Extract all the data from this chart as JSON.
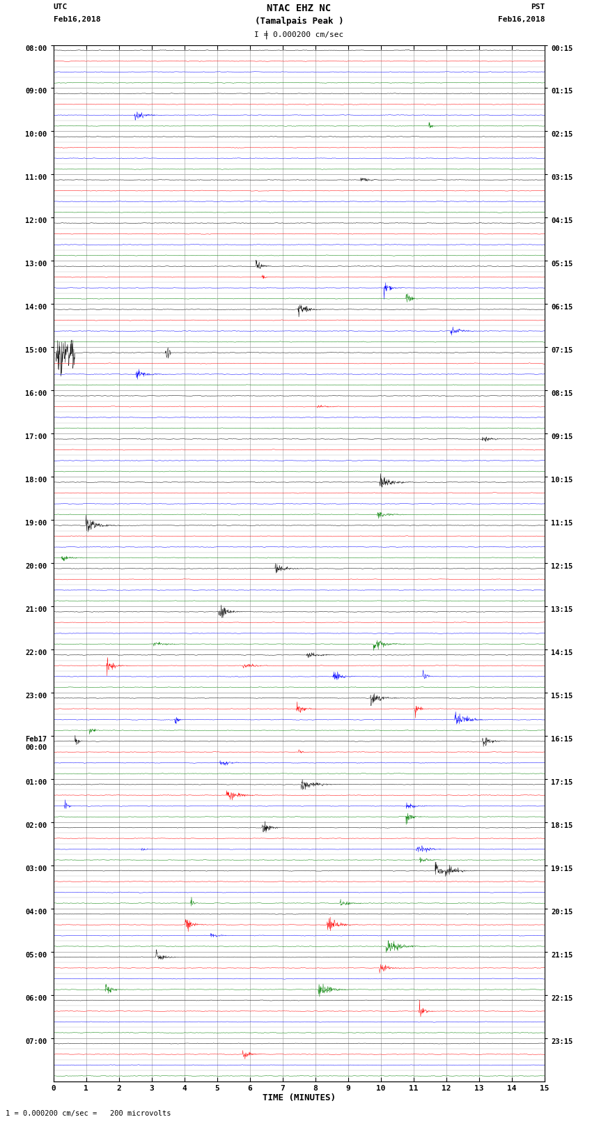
{
  "title_line1": "NTAC EHZ NC",
  "title_line2": "(Tamalpais Peak )",
  "scale_label": "I = 0.000200 cm/sec",
  "left_label": "UTC",
  "left_date": "Feb16,2018",
  "right_label": "PST",
  "right_date": "Feb16,2018",
  "xlabel": "TIME (MINUTES)",
  "footer": "1 = 0.000200 cm/sec =   200 microvolts",
  "utc_times": [
    "08:00",
    "09:00",
    "10:00",
    "11:00",
    "12:00",
    "13:00",
    "14:00",
    "15:00",
    "16:00",
    "17:00",
    "18:00",
    "19:00",
    "20:00",
    "21:00",
    "22:00",
    "23:00",
    "Feb17\n00:00",
    "01:00",
    "02:00",
    "03:00",
    "04:00",
    "05:00",
    "06:00",
    "07:00"
  ],
  "pst_times": [
    "00:15",
    "01:15",
    "02:15",
    "03:15",
    "04:15",
    "05:15",
    "06:15",
    "07:15",
    "08:15",
    "09:15",
    "10:15",
    "11:15",
    "12:15",
    "13:15",
    "14:15",
    "15:15",
    "16:15",
    "17:15",
    "18:15",
    "19:15",
    "20:15",
    "21:15",
    "22:15",
    "23:15"
  ],
  "trace_colors": [
    "black",
    "red",
    "blue",
    "green"
  ],
  "bg_color": "#ffffff",
  "plot_bg": "#ffffff",
  "grid_color": "#aaaaaa",
  "n_rows": 24,
  "traces_per_row": 4,
  "x_ticks": [
    0,
    1,
    2,
    3,
    4,
    5,
    6,
    7,
    8,
    9,
    10,
    11,
    12,
    13,
    14,
    15
  ],
  "xlim": [
    0,
    15
  ],
  "amplitude": 0.25,
  "noise_scale": 0.055
}
